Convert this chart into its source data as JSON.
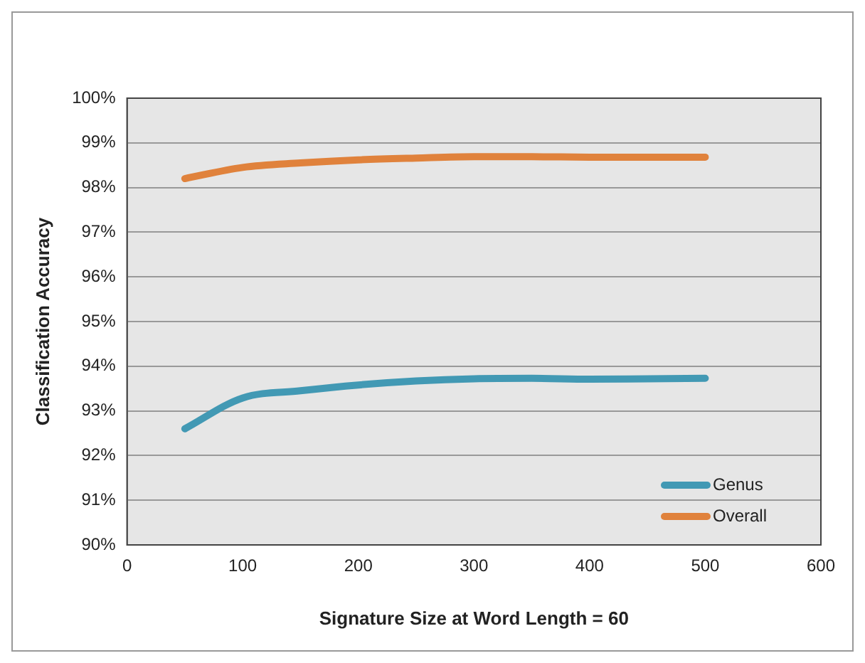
{
  "chart_data": {
    "type": "line",
    "xlabel": "Signature Size at Word Length = 60",
    "ylabel": "Classification Accuracy",
    "x": [
      50,
      100,
      150,
      200,
      250,
      300,
      350,
      400,
      450,
      500
    ],
    "series": [
      {
        "name": "Genus",
        "color": "#4299b4",
        "values": [
          92.6,
          93.29,
          93.45,
          93.58,
          93.67,
          93.72,
          93.73,
          93.71,
          93.72,
          93.73
        ]
      },
      {
        "name": "Overall",
        "color": "#e0823c",
        "values": [
          98.2,
          98.45,
          98.55,
          98.62,
          98.66,
          98.69,
          98.69,
          98.68,
          98.68,
          98.68
        ]
      }
    ],
    "xlim": [
      0,
      600
    ],
    "xticks": [
      0,
      100,
      200,
      300,
      400,
      500,
      600
    ],
    "ylim": [
      90,
      100
    ],
    "yticks": [
      {
        "value": 90,
        "label": "90%"
      },
      {
        "value": 91,
        "label": "91%"
      },
      {
        "value": 92,
        "label": "92%"
      },
      {
        "value": 93,
        "label": "93%"
      },
      {
        "value": 94,
        "label": "94%"
      },
      {
        "value": 95,
        "label": "95%"
      },
      {
        "value": 96,
        "label": "96%"
      },
      {
        "value": 97,
        "label": "97%"
      },
      {
        "value": 98,
        "label": "98%"
      },
      {
        "value": 99,
        "label": "99%"
      },
      {
        "value": 100,
        "label": "100%"
      }
    ],
    "grid": "y",
    "legend": "bottom right",
    "marker": "none",
    "line_style": "solid"
  }
}
